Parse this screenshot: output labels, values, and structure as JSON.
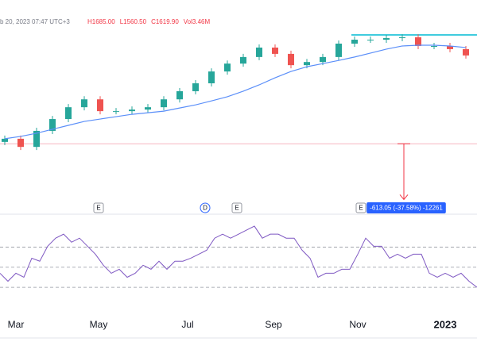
{
  "header": {
    "date": "b 20, 2023 07:47 UTC+3",
    "fields": [
      "H1685.00",
      "L1560.50",
      "C1619.90",
      "Vol3.46M"
    ]
  },
  "measure": {
    "label": "-613.05 (-37.58%) -12261",
    "x": 254,
    "from": 1153,
    "to": 941
  },
  "events": [
    {
      "label": "E",
      "x": 62
    },
    {
      "label": "D",
      "x": 129
    },
    {
      "label": "E",
      "x": 149
    },
    {
      "label": "E",
      "x": 227
    }
  ],
  "xlim": [
    0,
    300
  ],
  "xticks": [
    {
      "value": 10,
      "label": "Mar"
    },
    {
      "value": 62,
      "label": "May"
    },
    {
      "value": 118,
      "label": "Jul"
    },
    {
      "value": 172,
      "label": "Sep"
    },
    {
      "value": 225,
      "label": "Nov"
    },
    {
      "value": 280,
      "label": "2023"
    }
  ],
  "chart_data": [
    {
      "type": "candlestick",
      "ylim": [
        900,
        1700
      ],
      "up_color": "#26a69a",
      "down_color": "#ef5350",
      "ma_color": "#5b8ff9",
      "x": [
        3,
        13,
        23,
        33,
        43,
        53,
        63,
        73,
        83,
        93,
        103,
        113,
        123,
        133,
        143,
        153,
        163,
        173,
        183,
        193,
        203,
        213,
        223,
        233,
        243,
        253,
        263,
        273,
        283,
        293
      ],
      "open": [
        1160,
        1172,
        1141,
        1202,
        1247,
        1292,
        1322,
        1277,
        1277,
        1283,
        1292,
        1322,
        1353,
        1383,
        1428,
        1458,
        1483,
        1519,
        1495,
        1452,
        1464,
        1483,
        1534,
        1549,
        1549,
        1555,
        1558,
        1525,
        1525,
        1513
      ],
      "high": [
        1184,
        1184,
        1214,
        1259,
        1304,
        1334,
        1334,
        1289,
        1295,
        1304,
        1334,
        1365,
        1395,
        1440,
        1470,
        1495,
        1531,
        1531,
        1507,
        1476,
        1495,
        1546,
        1561,
        1561,
        1567,
        1570,
        1570,
        1537,
        1537,
        1525
      ],
      "low": [
        1148,
        1129,
        1129,
        1190,
        1235,
        1280,
        1265,
        1265,
        1265,
        1271,
        1280,
        1310,
        1341,
        1371,
        1416,
        1446,
        1471,
        1483,
        1440,
        1440,
        1452,
        1471,
        1522,
        1537,
        1537,
        1543,
        1513,
        1513,
        1501,
        1477
      ],
      "close": [
        1172,
        1141,
        1202,
        1247,
        1292,
        1322,
        1277,
        1277,
        1283,
        1292,
        1322,
        1353,
        1383,
        1428,
        1458,
        1483,
        1519,
        1495,
        1452,
        1464,
        1483,
        1534,
        1549,
        1549,
        1555,
        1558,
        1525,
        1525,
        1513,
        1489
      ],
      "ma": [
        1172,
        1181,
        1193,
        1208,
        1223,
        1238,
        1247,
        1256,
        1265,
        1271,
        1277,
        1289,
        1301,
        1316,
        1332,
        1353,
        1377,
        1404,
        1428,
        1446,
        1458,
        1470,
        1483,
        1498,
        1513,
        1525,
        1528,
        1528,
        1525,
        1519
      ],
      "hlines": [
        {
          "value": 1567,
          "from": 221,
          "to": 300,
          "color": "#00bcd4"
        },
        {
          "value": 1153,
          "from": 0,
          "to": 300,
          "color": "#f7b6c0"
        }
      ]
    },
    {
      "type": "line",
      "ylim": [
        0,
        95
      ],
      "color": "#7e57c2",
      "levels": [
        70,
        50,
        30
      ],
      "x": [
        0,
        5,
        10,
        15,
        20,
        25,
        30,
        35,
        40,
        45,
        50,
        55,
        60,
        65,
        70,
        75,
        80,
        85,
        90,
        95,
        100,
        105,
        110,
        115,
        120,
        125,
        130,
        135,
        140,
        145,
        150,
        155,
        160,
        165,
        170,
        175,
        180,
        185,
        190,
        195,
        200,
        205,
        210,
        215,
        220,
        225,
        230,
        235,
        240,
        245,
        250,
        255,
        260,
        265,
        270,
        275,
        280,
        285,
        290,
        295,
        300
      ],
      "values": [
        44,
        36,
        44,
        40,
        59,
        56,
        71,
        79,
        83,
        75,
        79,
        71,
        63,
        52,
        44,
        48,
        40,
        44,
        52,
        48,
        56,
        48,
        56,
        56,
        59,
        63,
        67,
        79,
        83,
        79,
        83,
        87,
        91,
        79,
        83,
        83,
        79,
        79,
        67,
        59,
        40,
        44,
        44,
        48,
        48,
        63,
        79,
        71,
        71,
        59,
        63,
        59,
        63,
        63,
        44,
        40,
        44,
        40,
        44,
        36,
        30
      ]
    }
  ]
}
